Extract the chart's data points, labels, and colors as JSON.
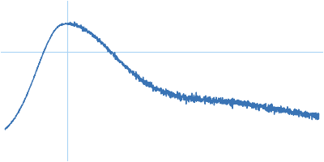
{
  "line_color": "#3A74B5",
  "background_color": "#ffffff",
  "grid_color": "#aad4f5",
  "figsize": [
    4.0,
    2.0
  ],
  "dpi": 100,
  "linewidth": 1.0,
  "seed": 17
}
